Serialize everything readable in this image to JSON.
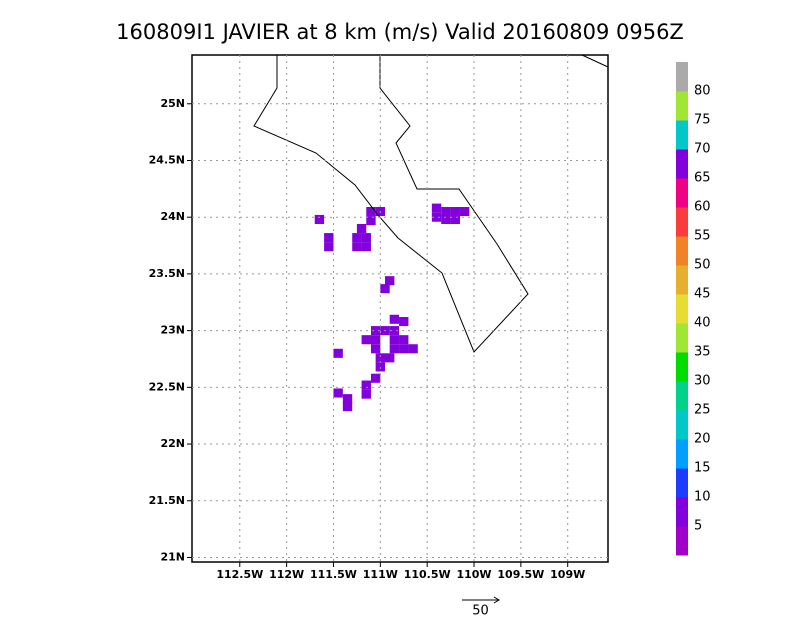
{
  "chart_data": {
    "type": "gridded-map",
    "title": "160809I1 JAVIER at 8 km (m/s) Valid 20160809 0956Z",
    "xlim": [
      -113.01,
      -108.57
    ],
    "ylim": [
      20.96,
      25.43
    ],
    "xticks": [
      {
        "value": -112.5,
        "label": "112.5W"
      },
      {
        "value": -112,
        "label": "112W"
      },
      {
        "value": -111.5,
        "label": "111.5W"
      },
      {
        "value": -111,
        "label": "111W"
      },
      {
        "value": -110.5,
        "label": "110.5W"
      },
      {
        "value": -110,
        "label": "110W"
      },
      {
        "value": -109.5,
        "label": "109.5W"
      },
      {
        "value": -109,
        "label": "109W"
      }
    ],
    "yticks": [
      {
        "value": 21,
        "label": "21N"
      },
      {
        "value": 21.5,
        "label": "21.5N"
      },
      {
        "value": 22,
        "label": "22N"
      },
      {
        "value": 22.5,
        "label": "22.5N"
      },
      {
        "value": 23,
        "label": "23N"
      },
      {
        "value": 23.5,
        "label": "23.5N"
      },
      {
        "value": 24,
        "label": "24N"
      },
      {
        "value": 24.5,
        "label": "24.5N"
      },
      {
        "value": 25,
        "label": "25N"
      }
    ],
    "grid": true,
    "levels": [
      5,
      10,
      15,
      20,
      25,
      30,
      35,
      40,
      45,
      50,
      55,
      60,
      65,
      70,
      75,
      80
    ],
    "colors": [
      "#a000c8",
      "#8200dc",
      "#1e3cff",
      "#00a0ff",
      "#00c8c8",
      "#00d28c",
      "#00dc00",
      "#a0e632",
      "#e6dc32",
      "#e6af2d",
      "#f08228",
      "#fa3c3c",
      "#f00082",
      "#8200dc",
      "#00c8c8",
      "#a0e632",
      "#aaaaaa"
    ],
    "cells": {
      "lon": [
        -111.1,
        -111.0,
        -111.1,
        -110.4,
        -110.3,
        -110.2,
        -110.1,
        -110.3,
        -110.2,
        -110.4,
        -111.65,
        -111.55,
        -111.55,
        -111.2,
        -111.25,
        -111.15,
        -111.25,
        -111.15,
        -110.95,
        -110.9,
        -110.85,
        -110.75,
        -111.05,
        -110.95,
        -110.85,
        -111.15,
        -111.05,
        -110.85,
        -110.75,
        -111.05,
        -110.85,
        -110.75,
        -110.65,
        -111.0,
        -110.9,
        -111.0,
        -111.45,
        -111.15,
        -111.15,
        -111.05,
        -111.45,
        -111.35,
        -111.35
      ],
      "lat": [
        24.05,
        24.05,
        23.97,
        24.08,
        24.05,
        24.05,
        24.05,
        23.98,
        23.98,
        24.0,
        23.98,
        23.82,
        23.74,
        23.9,
        23.82,
        23.82,
        23.74,
        23.74,
        23.37,
        23.44,
        23.1,
        23.08,
        23.0,
        23.0,
        23.0,
        22.92,
        22.92,
        22.92,
        22.92,
        22.84,
        22.84,
        22.84,
        22.84,
        22.76,
        22.76,
        22.68,
        22.8,
        22.52,
        22.44,
        22.58,
        22.45,
        22.4,
        22.33
      ],
      "values": [
        6,
        6,
        6,
        6,
        6,
        6,
        6,
        6,
        6,
        6,
        6,
        6,
        6,
        6,
        6,
        6,
        6,
        6,
        6,
        6,
        6,
        6,
        6,
        6,
        6,
        6,
        6,
        6,
        6,
        6,
        6,
        6,
        6,
        6,
        6,
        6,
        6,
        6,
        6,
        6,
        6,
        6,
        6
      ]
    },
    "vector_key": 50
  }
}
